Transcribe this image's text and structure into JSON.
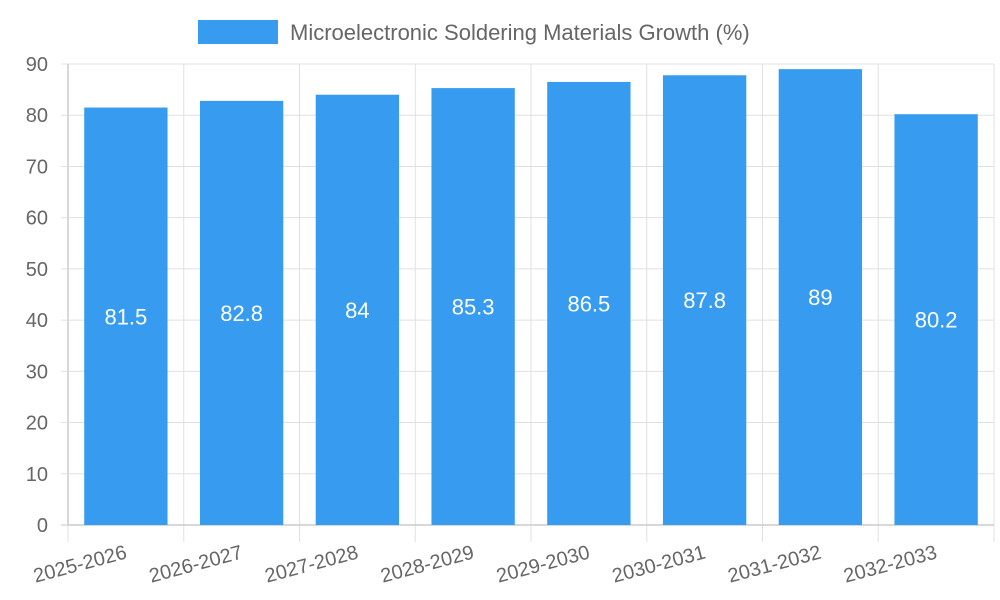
{
  "chart_data": {
    "type": "bar",
    "categories": [
      "2025-2026",
      "2026-2027",
      "2027-2028",
      "2028-2029",
      "2029-2030",
      "2030-2031",
      "2031-2032",
      "2032-2033"
    ],
    "series": [
      {
        "name": "Microelectronic Soldering Materials Growth (%)",
        "values": [
          81.5,
          82.8,
          84,
          85.3,
          86.5,
          87.8,
          89,
          80.2
        ],
        "data_labels": [
          "81.5",
          "82.8",
          "84",
          "85.3",
          "86.5",
          "87.8",
          "89",
          "80.2"
        ],
        "color": "#379cf0"
      }
    ],
    "y_ticks": [
      "0",
      "10",
      "20",
      "30",
      "40",
      "50",
      "60",
      "70",
      "80",
      "90"
    ],
    "ylim": [
      0,
      90
    ],
    "grid": true,
    "legend_position": "top-center"
  },
  "colors": {
    "grid": "#e0e0e0",
    "axis_text": "#666666",
    "value_text": "#ffffff"
  }
}
